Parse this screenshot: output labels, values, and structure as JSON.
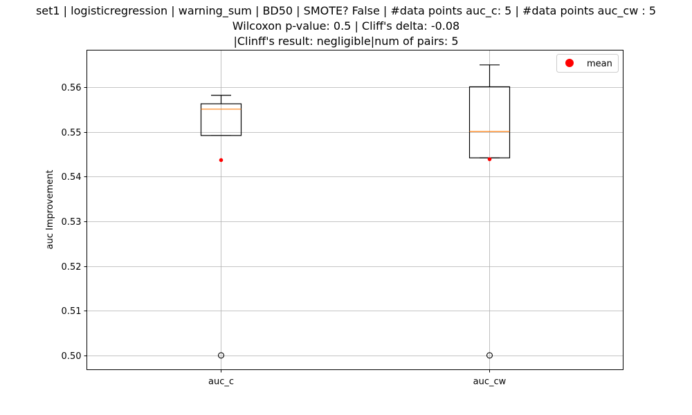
{
  "chart_data": {
    "type": "boxplot",
    "title_lines": [
      "set1 | logisticregression | warning_sum | BD50 | SMOTE? False | #data points auc_c: 5 | #data points auc_cw : 5",
      "Wilcoxon p-value: 0.5 | Cliff's delta: -0.08",
      "|Clinff's result: negligible|num of pairs: 5"
    ],
    "xlabel": "",
    "ylabel": "auc Improvement",
    "ylim": [
      0.4968,
      0.5683
    ],
    "yticks": [
      0.5,
      0.51,
      0.52,
      0.53,
      0.54,
      0.55,
      0.56
    ],
    "ytick_labels": [
      "0.50",
      "0.51",
      "0.52",
      "0.53",
      "0.54",
      "0.55",
      "0.56"
    ],
    "categories": [
      "auc_c",
      "auc_cw"
    ],
    "boxes": [
      {
        "name": "auc_c",
        "whisker_low": 0.5492,
        "q1": 0.5492,
        "median": 0.5551,
        "q3": 0.5563,
        "whisker_high": 0.5582,
        "mean": 0.5437,
        "outliers": [
          0.5
        ]
      },
      {
        "name": "auc_cw",
        "whisker_low": 0.5442,
        "q1": 0.5442,
        "median": 0.5501,
        "q3": 0.5601,
        "whisker_high": 0.565,
        "mean": 0.5439,
        "outliers": [
          0.5
        ]
      }
    ],
    "legend": {
      "label": "mean",
      "position": "upper right"
    },
    "grid": true,
    "colors": {
      "median": "#ff7f0e",
      "mean": "#ff0000",
      "box": "#000000",
      "grid": "#b0b0b0"
    }
  }
}
